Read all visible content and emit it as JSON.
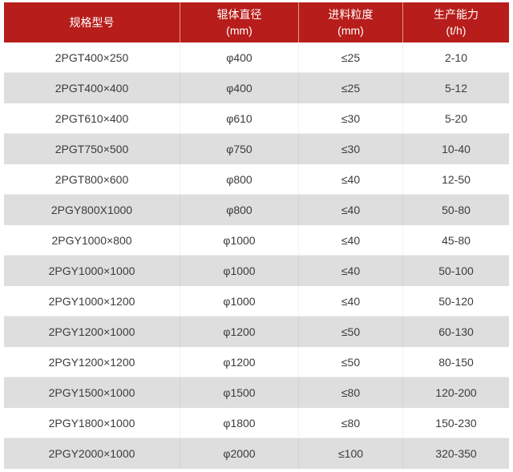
{
  "colors": {
    "header_bg": "#b71d1a",
    "header_text": "#ffffff",
    "row_bg": "#ffffff",
    "row_alt_bg": "#dedede",
    "body_text": "#3c3c3c"
  },
  "table": {
    "columns": [
      {
        "label": "规格型号",
        "sublabel": ""
      },
      {
        "label": "辊体直径",
        "sublabel": "(mm)"
      },
      {
        "label": "进料粒度",
        "sublabel": "(mm)"
      },
      {
        "label": "生产能力",
        "sublabel": "(t/h)"
      }
    ],
    "rows": [
      [
        "2PGT400×250",
        "φ400",
        "≤25",
        "2-10"
      ],
      [
        "2PGT400×400",
        "φ400",
        "≤25",
        "5-12"
      ],
      [
        "2PGT610×400",
        "φ610",
        "≤30",
        "5-20"
      ],
      [
        "2PGT750×500",
        "φ750",
        "≤30",
        "10-40"
      ],
      [
        "2PGT800×600",
        "φ800",
        "≤40",
        "12-50"
      ],
      [
        "2PGY800X1000",
        "φ800",
        "≤40",
        "50-80"
      ],
      [
        "2PGY1000×800",
        "φ1000",
        "≤40",
        "45-80"
      ],
      [
        "2PGY1000×1000",
        "φ1000",
        "≤40",
        "50-100"
      ],
      [
        "2PGY1000×1200",
        "φ1000",
        "≤40",
        "50-120"
      ],
      [
        "2PGY1200×1000",
        "φ1200",
        "≤50",
        "60-130"
      ],
      [
        "2PGY1200×1200",
        "φ1200",
        "≤50",
        "80-150"
      ],
      [
        "2PGY1500×1000",
        "φ1500",
        "≤80",
        "120-200"
      ],
      [
        "2PGY1800×1000",
        "φ1800",
        "≤80",
        "150-230"
      ],
      [
        "2PGY2000×1000",
        "φ2000",
        "≤100",
        "320-350"
      ]
    ]
  }
}
